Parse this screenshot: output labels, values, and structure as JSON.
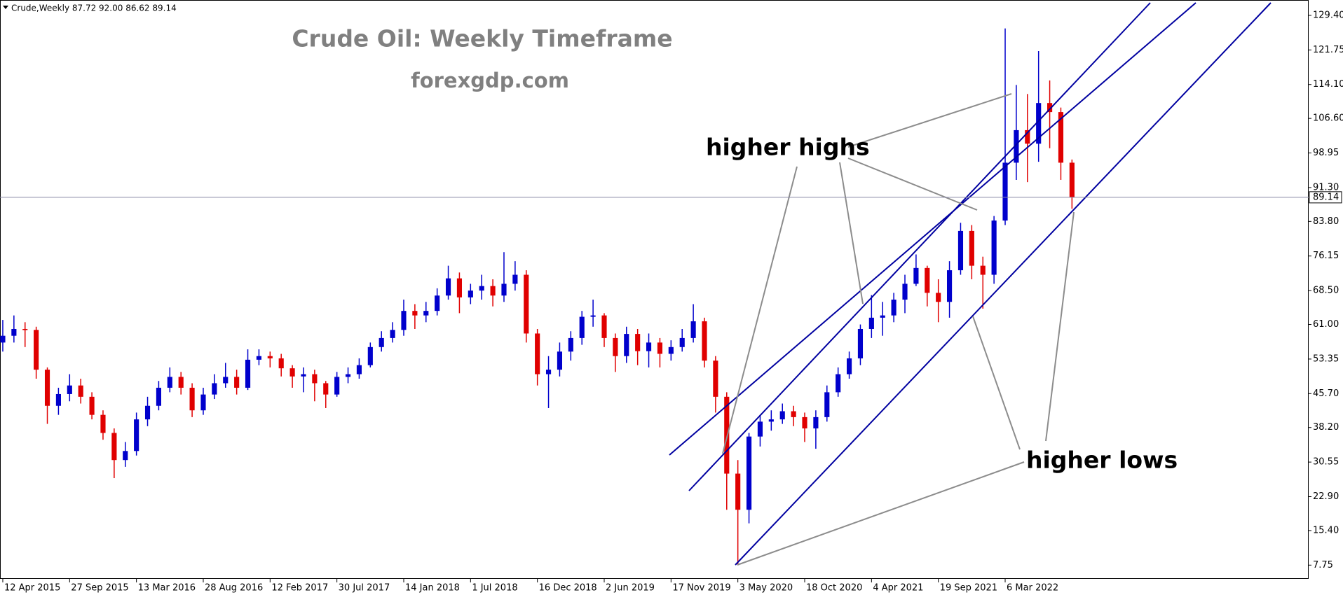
{
  "info_label": "Crude,Weekly  87.72 92.00 86.62 89.14",
  "chart_data": {
    "type": "candlestick",
    "title": "Crude Oil: Weekly Timeframe",
    "subtitle": "forexgdp.com",
    "annotations": [
      "higher highs",
      "higher lows"
    ],
    "x": [
      "12 Apr 2015",
      "10 May 2015",
      "7 Jun 2015",
      "5 Jul 2015",
      "2 Aug 2015",
      "30 Aug 2015",
      "27 Sep 2015",
      "25 Oct 2015",
      "22 Nov 2015",
      "20 Dec 2015",
      "17 Jan 2016",
      "14 Feb 2016",
      "13 Mar 2016",
      "10 Apr 2016",
      "8 May 2016",
      "5 Jun 2016",
      "3 Jul 2016",
      "31 Jul 2016",
      "28 Aug 2016",
      "25 Sep 2016",
      "23 Oct 2016",
      "20 Nov 2016",
      "18 Dec 2016",
      "15 Jan 2017",
      "12 Feb 2017",
      "12 Mar 2017",
      "9 Apr 2017",
      "7 May 2017",
      "4 Jun 2017",
      "2 Jul 2017",
      "30 Jul 2017",
      "27 Aug 2017",
      "24 Sep 2017",
      "22 Oct 2017",
      "19 Nov 2017",
      "17 Dec 2017",
      "14 Jan 2018",
      "11 Feb 2018",
      "11 Mar 2018",
      "8 Apr 2018",
      "6 May 2018",
      "3 Jun 2018",
      "1 Jul 2018",
      "29 Jul 2018",
      "26 Aug 2018",
      "23 Sep 2018",
      "21 Oct 2018",
      "18 Nov 2018",
      "16 Dec 2018",
      "13 Jan 2019",
      "10 Feb 2019",
      "10 Mar 2019",
      "7 Apr 2019",
      "5 May 2019",
      "2 Jun 2019",
      "30 Jun 2019",
      "28 Jul 2019",
      "25 Aug 2019",
      "22 Sep 2019",
      "20 Oct 2019",
      "17 Nov 2019",
      "15 Dec 2019",
      "12 Jan 2020",
      "9 Feb 2020",
      "8 Mar 2020",
      "5 Apr 2020",
      "3 May 2020",
      "31 May 2020",
      "28 Jun 2020",
      "26 Jul 2020",
      "23 Aug 2020",
      "20 Sep 2020",
      "18 Oct 2020",
      "15 Nov 2020",
      "13 Dec 2020",
      "10 Jan 2021",
      "7 Feb 2021",
      "7 Mar 2021",
      "4 Apr 2021",
      "2 May 2021",
      "30 May 2021",
      "27 Jun 2021",
      "25 Jul 2021",
      "22 Aug 2021",
      "19 Sep 2021",
      "17 Oct 2021",
      "14 Nov 2021",
      "12 Dec 2021",
      "9 Jan 2022",
      "6 Feb 2022",
      "6 Mar 2022",
      "3 Apr 2022",
      "1 May 2022",
      "29 May 2022",
      "26 Jun 2022",
      "24 Jul 2022",
      "21 Aug 2022"
    ],
    "open": [
      57,
      58.5,
      60,
      59.8,
      51,
      43,
      45.6,
      47.5,
      45,
      41,
      37,
      31,
      33,
      40,
      43,
      47,
      49.4,
      47,
      42,
      45.5,
      48,
      49.4,
      47,
      53.2,
      54,
      53.5,
      51.3,
      49.5,
      50,
      48,
      45.5,
      49.4,
      50,
      52,
      56,
      58,
      59.8,
      64,
      63,
      64,
      67.4,
      71.2,
      67,
      68.5,
      69.5,
      67.4,
      70,
      72,
      59,
      50,
      51,
      55,
      58,
      62.7,
      63,
      58,
      54,
      58.9,
      55.1,
      57,
      54.5,
      56,
      58,
      61.7,
      53,
      45,
      28,
      20,
      36.2,
      39.5,
      40,
      41.8,
      40.5,
      38,
      40.5,
      46,
      50,
      53.5,
      60,
      62.5,
      63,
      66.5,
      70,
      73.5,
      68,
      66,
      73,
      81.7,
      74,
      72,
      84,
      96.8,
      104,
      101,
      110,
      108,
      96.8
    ],
    "high": [
      62,
      63,
      61.5,
      60.5,
      51.5,
      47,
      50,
      49,
      46,
      42,
      38,
      35,
      41.5,
      45,
      48.5,
      51.5,
      50.5,
      48,
      47,
      50,
      52.5,
      51,
      55.5,
      55.5,
      55,
      54.5,
      52,
      51.5,
      51,
      48.5,
      50.5,
      51.5,
      53.5,
      57,
      59.5,
      61.5,
      66.5,
      65.5,
      66,
      69,
      74,
      72.5,
      70,
      72,
      71,
      77,
      75,
      73,
      60,
      54,
      57,
      59.5,
      64,
      66.5,
      63.5,
      59,
      60.5,
      60,
      59,
      58,
      57.5,
      60,
      65.5,
      62.5,
      54,
      46,
      31,
      37,
      41,
      42,
      43.5,
      43,
      41.5,
      42,
      47.5,
      51.5,
      55,
      61,
      67.5,
      66,
      68,
      72,
      76.5,
      74,
      71,
      75,
      83.5,
      83,
      76,
      85,
      126.5,
      114,
      112,
      121.5,
      115,
      109,
      97.5
    ],
    "low": [
      55,
      57,
      56,
      49,
      39,
      41,
      44,
      43.5,
      40,
      35.5,
      27,
      29.5,
      32,
      38.5,
      42,
      46,
      45.5,
      40.5,
      41,
      44.5,
      47,
      45.5,
      46.5,
      52,
      51.5,
      49.5,
      47,
      46,
      44,
      42.5,
      45,
      48,
      49,
      51.5,
      55,
      57,
      58.5,
      60,
      61.5,
      63,
      66.5,
      63.5,
      65.5,
      66.5,
      65,
      66,
      68.5,
      57,
      47.5,
      42.5,
      49.5,
      53,
      56.5,
      60.5,
      56,
      50.5,
      52.5,
      52,
      51.5,
      51.5,
      53,
      55,
      57,
      51.5,
      41.5,
      20,
      7.75,
      17,
      34,
      37.5,
      39,
      38.5,
      35,
      33.5,
      39.5,
      45,
      49,
      52,
      58,
      58.5,
      61.5,
      63.5,
      69.5,
      65,
      61.5,
      62.5,
      72,
      71,
      64.5,
      70,
      83,
      93,
      92.5,
      97,
      100,
      93,
      86.6
    ],
    "close": [
      58.5,
      60,
      59.8,
      51,
      43,
      45.6,
      47.5,
      45,
      41,
      37,
      31,
      33,
      40,
      43,
      47,
      49.4,
      47,
      42,
      45.5,
      48,
      49.4,
      47,
      53.2,
      54,
      53.5,
      51.3,
      49.5,
      50,
      48,
      45.5,
      49.4,
      50,
      52,
      56,
      58,
      59.8,
      64,
      63,
      64,
      67.4,
      71.2,
      67,
      68.5,
      69.5,
      67.4,
      70,
      72,
      59,
      50,
      51,
      55,
      58,
      62.7,
      63,
      58,
      54,
      58.9,
      55.1,
      57,
      54.5,
      56,
      58,
      61.7,
      53,
      45,
      28,
      20,
      36.2,
      39.5,
      40,
      41.8,
      40.5,
      38,
      40.5,
      46,
      50,
      53.5,
      60,
      62.5,
      63,
      66.5,
      70,
      73.5,
      68,
      66,
      73,
      81.7,
      74,
      72,
      84,
      96.8,
      104,
      101,
      110,
      108,
      96.8,
      89.14
    ],
    "up_color": "#0000cc",
    "down_color": "#e00000",
    "price_line": 89.14,
    "xlim": [
      "5 Apr 2015",
      "7 Apr 2024"
    ],
    "xticks": [
      "12 Apr 2015",
      "27 Sep 2015",
      "13 Mar 2016",
      "28 Aug 2016",
      "12 Feb 2017",
      "30 Jul 2017",
      "14 Jan 2018",
      "1 Jul 2018",
      "16 Dec 2018",
      "2 Jun 2019",
      "17 Nov 2019",
      "3 May 2020",
      "18 Oct 2020",
      "4 Apr 2021",
      "19 Sep 2021",
      "6 Mar 2022"
    ],
    "ylim": [
      4.7,
      132.8
    ],
    "yticks": [
      {
        "value": 129.4,
        "label": "129.40"
      },
      121.75,
      {
        "value": 114.1,
        "label": "114.10"
      },
      {
        "value": 106.6,
        "label": "106.60"
      },
      98.95,
      {
        "value": 91.3,
        "label": "91.30"
      },
      {
        "value": 83.8,
        "label": "83.80"
      },
      76.15,
      {
        "value": 68.5,
        "label": "68.50"
      },
      {
        "value": 61,
        "label": "61.00"
      },
      53.35,
      {
        "value": 45.7,
        "label": "45.70"
      },
      {
        "value": 38.2,
        "label": "38.20"
      },
      30.55,
      {
        "value": 22.9,
        "label": "22.90"
      },
      {
        "value": 15.4,
        "label": "15.40"
      },
      7.75
    ],
    "grid": false
  }
}
